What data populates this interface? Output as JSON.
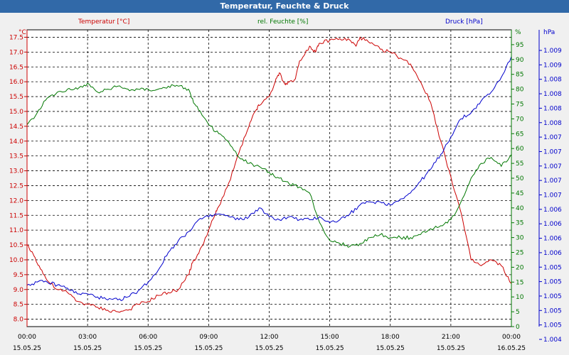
{
  "window": {
    "title": "Temperatur, Feuchte & Druck"
  },
  "chart_data": {
    "type": "line",
    "title": "Temperatur, Feuchte & Druck",
    "x_ticks": [
      {
        "h": 0,
        "time": "00:00",
        "date": "15.05.25"
      },
      {
        "h": 3,
        "time": "03:00",
        "date": "15.05.25"
      },
      {
        "h": 6,
        "time": "06:00",
        "date": "15.05.25"
      },
      {
        "h": 9,
        "time": "09:00",
        "date": "15.05.25"
      },
      {
        "h": 12,
        "time": "12:00",
        "date": "15.05.25"
      },
      {
        "h": 15,
        "time": "15:00",
        "date": "15.05.25"
      },
      {
        "h": 18,
        "time": "18:00",
        "date": "15.05.25"
      },
      {
        "h": 21,
        "time": "21:00",
        "date": "15.05.25"
      },
      {
        "h": 24,
        "time": "00:00",
        "date": "16.05.25"
      }
    ],
    "xlim": [
      0,
      24
    ],
    "axes": {
      "temp": {
        "label": "Temperatur [°C]",
        "unit": "°C",
        "min": 7.75,
        "max": 17.75,
        "ticks": [
          "8.0",
          "8.5",
          "9.0",
          "9.5",
          "10.0",
          "10.5",
          "11.0",
          "11.5",
          "12.0",
          "12.5",
          "13.0",
          "13.5",
          "14.0",
          "14.5",
          "15.0",
          "15.5",
          "16.0",
          "16.5",
          "17.0",
          "17.5"
        ]
      },
      "hum": {
        "label": "rel. Feuchte [%]",
        "unit": "%",
        "min": 0,
        "max": 100,
        "ticks": [
          "0",
          "5",
          "10",
          "15",
          "20",
          "25",
          "30",
          "35",
          "40",
          "45",
          "50",
          "55",
          "60",
          "65",
          "70",
          "75",
          "80",
          "85",
          "90",
          "95"
        ]
      },
      "press": {
        "label": "Druck [hPa]",
        "unit": "hPa",
        "ticks": [
          "1.004",
          "1.005",
          "1.005",
          "1.005",
          "1.005",
          "1.005",
          "1.006",
          "1.006",
          "1.006",
          "1.006",
          "1.007",
          "1.007",
          "1.007",
          "1.007",
          "1.007",
          "1.008",
          "1.008",
          "1.008",
          "1.008",
          "1.009",
          "1.009"
        ]
      }
    },
    "series": [
      {
        "name": "Temperatur",
        "color": "#cc0000",
        "axis": "temp",
        "x": [
          0,
          0.3,
          0.6,
          1,
          1.5,
          2,
          2.5,
          3,
          3.5,
          4,
          4.5,
          5,
          5.5,
          6,
          6.5,
          7,
          7.5,
          8,
          8.2,
          8.5,
          9,
          9.3,
          9.5,
          10,
          10.5,
          11,
          11.3,
          11.5,
          12,
          12.3,
          12.5,
          12.8,
          13,
          13.3,
          13.5,
          14,
          14.3,
          14.5,
          15,
          15.5,
          16,
          16.3,
          16.5,
          17,
          17.5,
          18,
          18.5,
          19,
          19.5,
          20,
          20.5,
          21,
          21.5,
          22,
          22.5,
          23,
          23.5,
          24
        ],
        "values": [
          10.5,
          10.2,
          9.8,
          9.3,
          9.0,
          8.9,
          8.6,
          8.5,
          8.4,
          8.3,
          8.25,
          8.3,
          8.5,
          8.6,
          8.8,
          8.9,
          9.0,
          9.5,
          9.9,
          10.2,
          11.0,
          11.5,
          11.8,
          12.6,
          13.6,
          14.5,
          15.0,
          15.2,
          15.5,
          16.0,
          16.3,
          15.9,
          16.0,
          16.1,
          16.7,
          17.2,
          17.0,
          17.3,
          17.4,
          17.45,
          17.4,
          17.2,
          17.5,
          17.3,
          17.1,
          17.0,
          16.8,
          16.6,
          16.0,
          15.3,
          14.0,
          12.8,
          11.6,
          10.0,
          9.8,
          10.0,
          9.8,
          9.2
        ]
      },
      {
        "name": "rel. Feuchte",
        "color": "#007700",
        "axis": "hum",
        "x": [
          0,
          0.5,
          1,
          1.5,
          2,
          2.5,
          3,
          3.5,
          4,
          4.5,
          5,
          5.5,
          6,
          6.5,
          7,
          7.5,
          8,
          8.3,
          8.5,
          9,
          9.5,
          10,
          10.5,
          11,
          11.5,
          12,
          12.5,
          13,
          13.5,
          14,
          14.5,
          15,
          15.5,
          16,
          16.5,
          17,
          17.5,
          18,
          18.5,
          19,
          19.5,
          20,
          20.5,
          21,
          21.5,
          22,
          22.5,
          23,
          23.5,
          24
        ],
        "values": [
          68,
          72,
          77,
          79,
          80,
          80,
          82,
          79,
          80,
          81,
          80,
          80,
          80,
          80,
          81,
          81,
          80,
          75,
          73,
          68,
          65,
          62,
          57,
          55,
          54,
          52,
          50,
          48,
          47,
          45,
          35,
          29,
          28,
          27,
          28,
          30,
          31,
          30,
          30,
          30,
          31,
          33,
          34,
          36,
          42,
          50,
          55,
          57,
          54,
          58
        ]
      },
      {
        "name": "Druck",
        "color": "#0000cc",
        "axis": "hum",
        "x": [
          0,
          0.5,
          1,
          1.5,
          2,
          2.5,
          3,
          3.5,
          4,
          4.5,
          5,
          5.5,
          6,
          6.5,
          7,
          7.5,
          8,
          8.5,
          9,
          9.5,
          10,
          10.5,
          11,
          11.5,
          12,
          12.5,
          13,
          13.5,
          14,
          14.5,
          15,
          15.5,
          16,
          16.5,
          17,
          17.5,
          18,
          18.5,
          19,
          19.5,
          20,
          20.5,
          21,
          21.5,
          22,
          22.5,
          23,
          23.5,
          24
        ],
        "values": [
          14,
          15,
          15,
          14,
          13,
          11,
          11,
          10,
          9,
          9,
          10,
          12,
          15,
          19,
          25,
          29,
          32,
          36,
          37,
          38,
          37,
          36,
          37,
          40,
          37,
          36,
          37,
          36,
          36,
          37,
          35,
          36,
          38,
          41,
          42,
          42,
          41,
          43,
          45,
          49,
          53,
          58,
          64,
          70,
          72,
          76,
          79,
          84,
          91
        ]
      }
    ],
    "grid": true
  }
}
